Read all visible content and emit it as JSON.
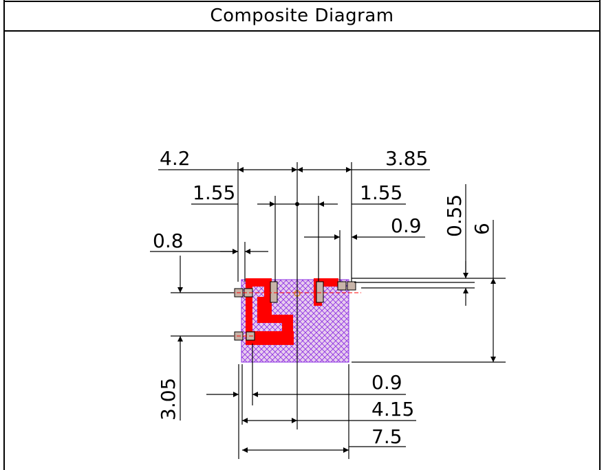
{
  "title": "Composite Diagram",
  "colors": {
    "outline": "#000000",
    "body_fill": "#d6a8e0",
    "hatch": "#8a2be2",
    "trace": "#ff0000",
    "pad": "#c8b4a8",
    "centerline": "#ff0000"
  },
  "dimensions": {
    "top_left_width": "4.2",
    "top_right_width": "3.85",
    "inner_left": "1.55",
    "inner_right": "1.55",
    "pad_offset_right": "0.9",
    "pad_offset_left": "0.8",
    "height_small": "0.55",
    "height_total": "6",
    "left_vertical": "3.05",
    "bottom_pad": "0.9",
    "bottom_half": "4.15",
    "bottom_total": "7.5"
  }
}
